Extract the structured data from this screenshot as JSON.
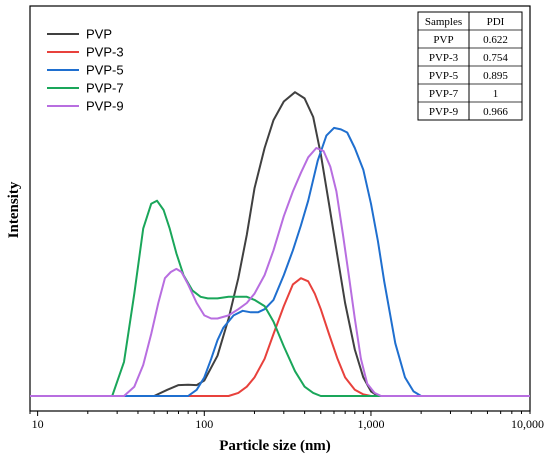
{
  "chart_data": {
    "type": "line",
    "xlabel": "Particle size (nm)",
    "ylabel": "Intensity",
    "x_scale": "log",
    "xlim": [
      9,
      9000
    ],
    "ylim": [
      0,
      1.05
    ],
    "x_ticks": [
      10,
      100,
      1000,
      10000
    ],
    "x_tick_labels": [
      "10",
      "100",
      "1,000",
      "10,000"
    ],
    "grid": false,
    "legend_position": "top-left",
    "series": [
      {
        "name": "PVP",
        "color": "#404040",
        "x": [
          9,
          50,
          60,
          70,
          80,
          90,
          100,
          120,
          140,
          160,
          180,
          200,
          230,
          260,
          300,
          350,
          400,
          450,
          500,
          560,
          630,
          700,
          800,
          900,
          1000,
          1100,
          9000
        ],
        "y": [
          0,
          0,
          0.02,
          0.035,
          0.036,
          0.035,
          0.05,
          0.13,
          0.25,
          0.38,
          0.52,
          0.67,
          0.8,
          0.89,
          0.95,
          0.98,
          0.96,
          0.9,
          0.78,
          0.62,
          0.45,
          0.3,
          0.15,
          0.06,
          0.015,
          0,
          0
        ]
      },
      {
        "name": "PVP-3",
        "color": "#e8413c",
        "x": [
          9,
          100,
          140,
          160,
          180,
          200,
          230,
          260,
          300,
          340,
          380,
          420,
          460,
          500,
          560,
          630,
          700,
          800,
          900,
          1000,
          9000
        ],
        "y": [
          0,
          0,
          0,
          0.01,
          0.03,
          0.06,
          0.12,
          0.2,
          0.29,
          0.36,
          0.38,
          0.37,
          0.33,
          0.28,
          0.2,
          0.12,
          0.06,
          0.02,
          0.005,
          0,
          0
        ]
      },
      {
        "name": "PVP-5",
        "color": "#1f6fcf",
        "x": [
          9,
          80,
          90,
          100,
          110,
          120,
          130,
          150,
          170,
          190,
          210,
          230,
          260,
          300,
          340,
          380,
          420,
          480,
          540,
          600,
          660,
          720,
          800,
          900,
          1000,
          1100,
          1200,
          1400,
          1600,
          1800,
          2000,
          9000
        ],
        "y": [
          0,
          0,
          0.02,
          0.06,
          0.12,
          0.18,
          0.22,
          0.26,
          0.275,
          0.27,
          0.27,
          0.28,
          0.31,
          0.39,
          0.47,
          0.55,
          0.63,
          0.76,
          0.84,
          0.865,
          0.86,
          0.85,
          0.8,
          0.73,
          0.62,
          0.5,
          0.37,
          0.17,
          0.06,
          0.015,
          0,
          0
        ]
      },
      {
        "name": "PVP-7",
        "color": "#1aa65a",
        "x": [
          9,
          28,
          33,
          38,
          43,
          48,
          52,
          57,
          62,
          68,
          75,
          85,
          95,
          105,
          120,
          140,
          160,
          180,
          200,
          230,
          260,
          300,
          350,
          400,
          450,
          500,
          9000
        ],
        "y": [
          0,
          0,
          0.11,
          0.33,
          0.54,
          0.62,
          0.63,
          0.6,
          0.54,
          0.46,
          0.39,
          0.34,
          0.32,
          0.315,
          0.315,
          0.32,
          0.32,
          0.32,
          0.31,
          0.29,
          0.24,
          0.16,
          0.08,
          0.03,
          0.01,
          0,
          0
        ]
      },
      {
        "name": "PVP-9",
        "color": "#b86ee0",
        "x": [
          9,
          33,
          38,
          43,
          48,
          53,
          58,
          63,
          68,
          73,
          80,
          90,
          100,
          110,
          120,
          140,
          160,
          180,
          200,
          230,
          260,
          300,
          340,
          380,
          420,
          470,
          520,
          570,
          620,
          680,
          740,
          800,
          870,
          950,
          1050,
          1150,
          9000
        ],
        "y": [
          0,
          0,
          0.03,
          0.1,
          0.2,
          0.3,
          0.38,
          0.4,
          0.41,
          0.4,
          0.36,
          0.3,
          0.26,
          0.25,
          0.25,
          0.26,
          0.28,
          0.3,
          0.33,
          0.39,
          0.47,
          0.58,
          0.66,
          0.72,
          0.77,
          0.8,
          0.79,
          0.74,
          0.66,
          0.52,
          0.38,
          0.25,
          0.12,
          0.04,
          0.01,
          0,
          0
        ]
      }
    ],
    "table": {
      "headers": [
        "Samples",
        "PDI"
      ],
      "rows": [
        [
          "PVP",
          "0.622"
        ],
        [
          "PVP-3",
          "0.754"
        ],
        [
          "PVP-5",
          "0.895"
        ],
        [
          "PVP-7",
          "1"
        ],
        [
          "PVP-9",
          "0.966"
        ]
      ]
    }
  }
}
